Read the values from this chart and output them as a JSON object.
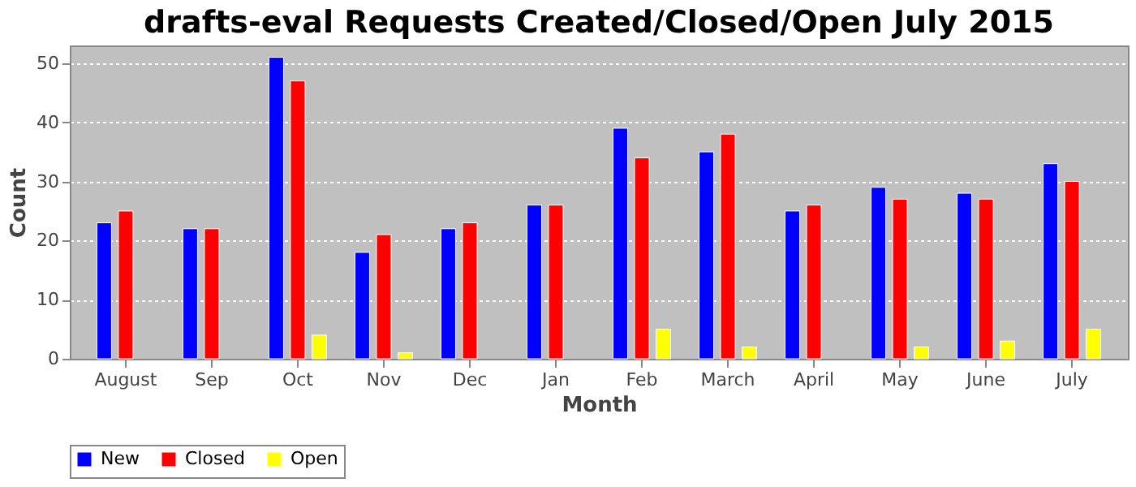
{
  "chart_data": {
    "type": "bar",
    "title": "drafts-eval Requests Created/Closed/Open July 2015",
    "xlabel": "Month",
    "ylabel": "Count",
    "categories": [
      "August",
      "Sep",
      "Oct",
      "Nov",
      "Dec",
      "Jan",
      "Feb",
      "March",
      "April",
      "May",
      "June",
      "July"
    ],
    "series": [
      {
        "name": "New",
        "color": "#0000ff",
        "values": [
          23,
          22,
          51,
          18,
          22,
          26,
          39,
          35,
          25,
          29,
          28,
          33
        ]
      },
      {
        "name": "Closed",
        "color": "#ff0000",
        "values": [
          25,
          22,
          47,
          21,
          23,
          26,
          34,
          38,
          26,
          27,
          27,
          30
        ]
      },
      {
        "name": "Open",
        "color": "#ffff00",
        "values": [
          null,
          null,
          4,
          1,
          null,
          null,
          5,
          2,
          null,
          2,
          3,
          5
        ]
      }
    ],
    "ylim": [
      0,
      53
    ],
    "yticks": [
      0,
      10,
      20,
      30,
      40,
      50
    ],
    "grid": "y",
    "legend": "bottom"
  }
}
